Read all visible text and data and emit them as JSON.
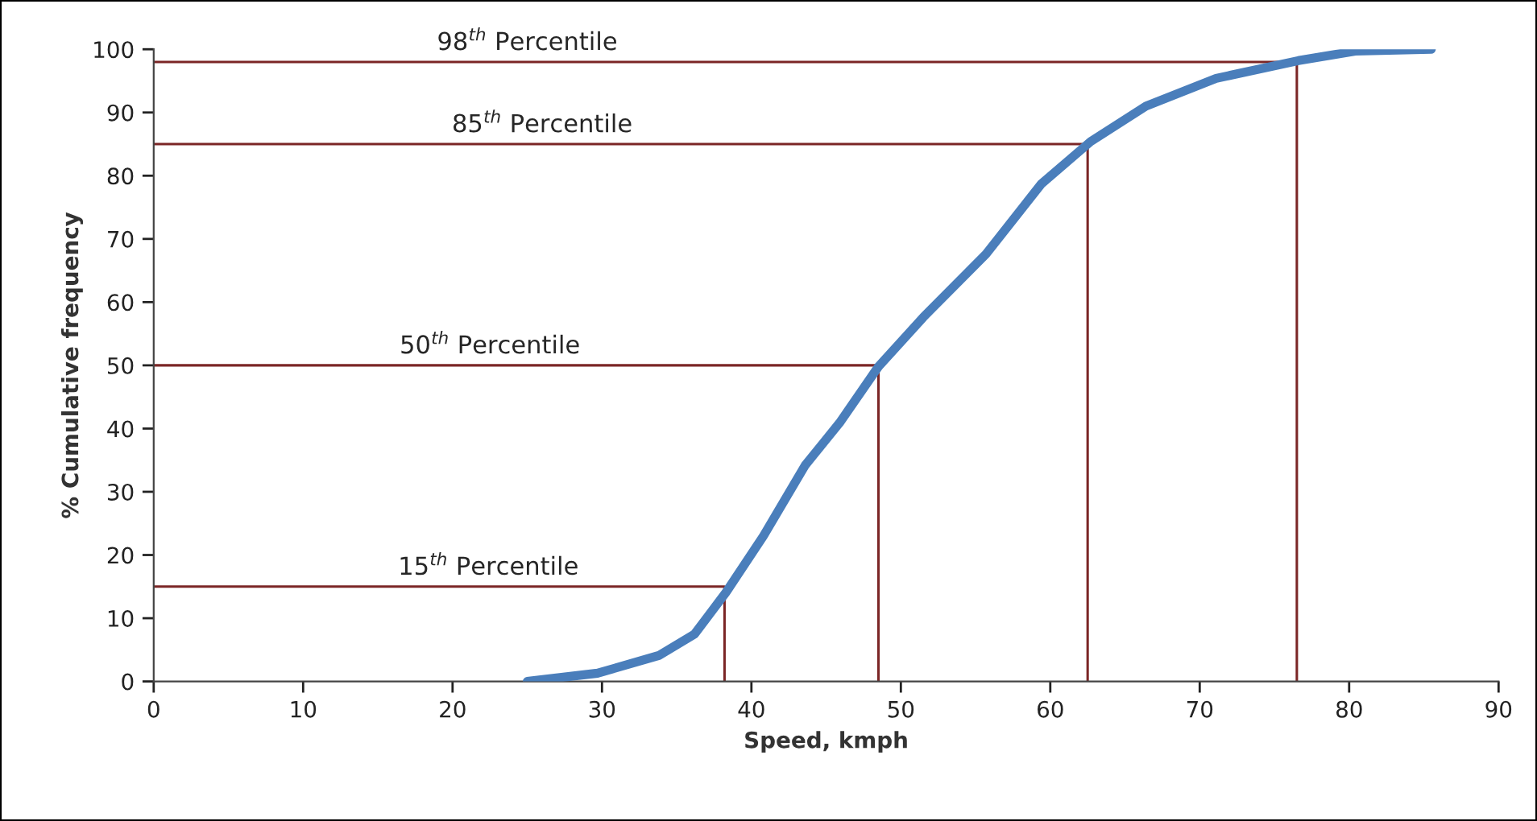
{
  "chart_data": {
    "type": "line",
    "xlabel": "Speed, kmph",
    "ylabel": "% Cumulative frequency",
    "xlim": [
      0,
      90
    ],
    "ylim": [
      0,
      100
    ],
    "xticks": [
      0,
      10,
      20,
      30,
      40,
      50,
      60,
      70,
      80,
      90
    ],
    "yticks": [
      0,
      10,
      20,
      30,
      40,
      50,
      60,
      70,
      80,
      90,
      100
    ],
    "grid": false,
    "legend": false,
    "marker": "none",
    "line_style": "solid",
    "series": [
      {
        "color": "#4a7ebb",
        "x": [
          25,
          29.7,
          33.8,
          36.2,
          38.3,
          40.8,
          43.6,
          45.9,
          48.5,
          51.5,
          55.7,
          59.4,
          62.7,
          66.4,
          71.1,
          76.6,
          80.4,
          85.5
        ],
        "values": [
          0,
          1.3,
          4.1,
          7.5,
          14.1,
          23,
          34.2,
          40.9,
          49.8,
          57.6,
          67.6,
          78.7,
          85.4,
          91,
          95.4,
          98.2,
          99.7,
          100
        ]
      },
      {
        "color": "#7b2626",
        "x": [
          0,
          38.2,
          38.2
        ],
        "values": [
          15,
          15,
          0
        ]
      },
      {
        "color": "#7b2626",
        "x": [
          0,
          48.5,
          48.5
        ],
        "values": [
          50,
          50,
          0
        ]
      },
      {
        "color": "#7b2626",
        "x": [
          0,
          62.5,
          62.5
        ],
        "values": [
          85,
          85,
          0
        ]
      },
      {
        "color": "#7b2626",
        "x": [
          0,
          76.5,
          76.5
        ],
        "values": [
          98,
          98,
          0
        ]
      }
    ],
    "annotations": [
      {
        "text": "15$^{th}$ Percentile",
        "x": 22.4,
        "y": 15
      },
      {
        "text": "50$^{th}$ Percentile",
        "x": 22.5,
        "y": 50
      },
      {
        "text": "85$^{th}$ Percentile",
        "x": 26,
        "y": 85
      },
      {
        "text": "98$^{th}$ Percentile",
        "x": 25,
        "y": 98
      }
    ]
  }
}
